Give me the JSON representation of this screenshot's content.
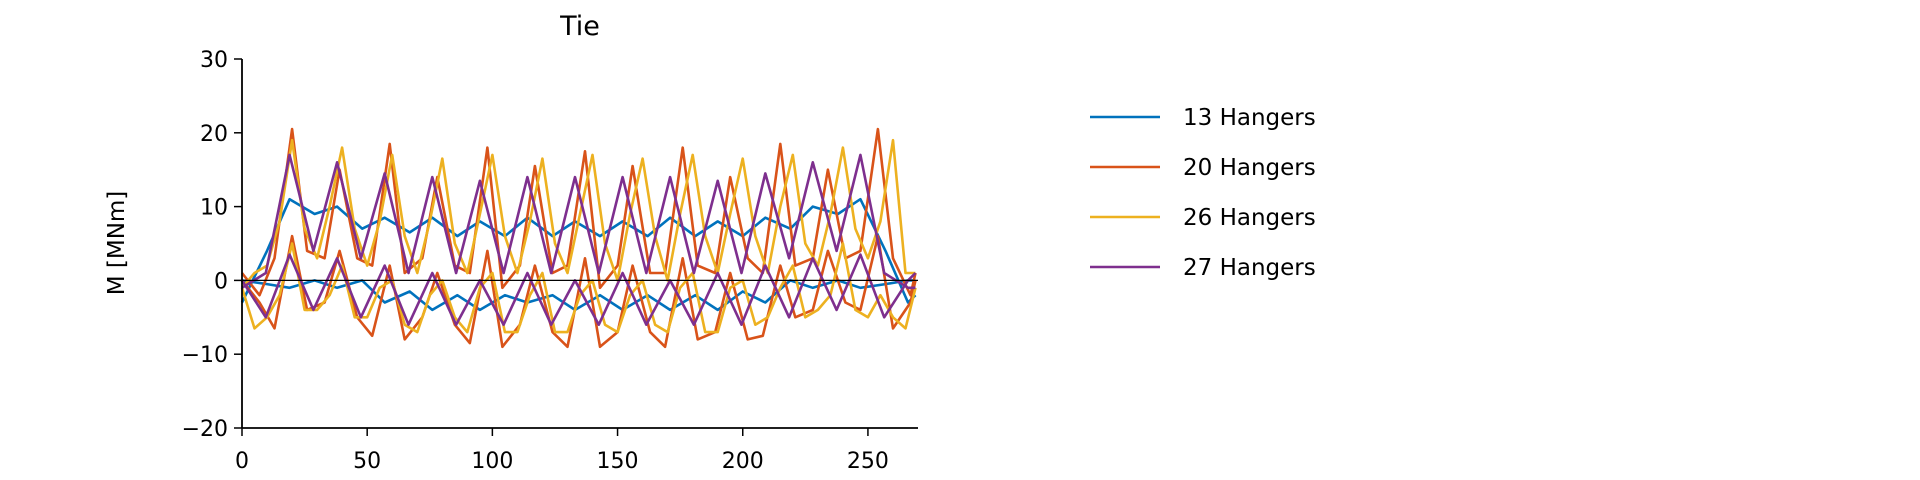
{
  "chart_data": {
    "type": "line",
    "title": "Tie",
    "xlabel": "",
    "ylabel": "M [MNm]",
    "xlim": [
      0,
      270
    ],
    "ylim": [
      -20,
      30
    ],
    "xticks": [
      0,
      50,
      100,
      150,
      200,
      250
    ],
    "yticks": [
      -20,
      -10,
      0,
      10,
      20,
      30
    ],
    "ytick_labels": [
      "−20",
      "−10",
      "0",
      "10",
      "20",
      "30"
    ],
    "zero_line": true,
    "grid": false,
    "legend_position": "right",
    "series": [
      {
        "name": "13 Hangers",
        "color": "#0072BD",
        "upper": {
          "x": [
            0,
            10,
            19,
            29,
            38,
            48,
            57,
            67,
            76,
            86,
            95,
            105,
            114,
            124,
            133,
            143,
            152,
            162,
            171,
            181,
            190,
            200,
            209,
            219,
            228,
            238,
            247,
            257,
            266,
            269
          ],
          "y": [
            -3,
            4,
            11,
            9,
            10,
            7,
            8.5,
            6.5,
            8.5,
            6,
            8,
            6,
            8.5,
            6,
            8,
            6,
            8,
            6,
            8.5,
            6,
            8,
            6,
            8.5,
            7,
            10,
            9,
            11,
            4,
            -3,
            -2
          ]
        },
        "lower": {
          "x": [
            0,
            10,
            19,
            29,
            38,
            48,
            57,
            67,
            76,
            86,
            95,
            105,
            114,
            124,
            133,
            143,
            152,
            162,
            171,
            181,
            190,
            200,
            209,
            219,
            228,
            238,
            247,
            257,
            266,
            269
          ],
          "y": [
            0,
            -0.5,
            -1,
            0,
            -1,
            0,
            -3,
            -1.5,
            -4,
            -2,
            -4,
            -2,
            -3,
            -2,
            -4,
            -2,
            -4,
            -2,
            -4,
            -2,
            -4,
            -1.5,
            -3,
            0,
            -1,
            0,
            -1,
            -0.5,
            0,
            0
          ]
        }
      },
      {
        "name": "20 Hangers",
        "color": "#D95319",
        "upper": {
          "x": [
            0,
            7,
            13,
            20,
            26,
            33,
            39,
            46,
            52,
            59,
            65,
            72,
            78,
            85,
            91,
            98,
            104,
            111,
            117,
            124,
            130,
            137,
            143,
            150,
            156,
            163,
            169,
            176,
            182,
            189,
            195,
            202,
            208,
            215,
            221,
            228,
            234,
            241,
            247,
            254,
            260,
            267,
            269
          ],
          "y": [
            1,
            -2,
            3,
            20.5,
            4,
            3,
            15,
            3,
            2,
            18.5,
            1,
            3,
            14,
            2,
            1,
            18,
            -1,
            2,
            15.5,
            1,
            2,
            17.5,
            -1,
            2,
            15.5,
            1,
            1,
            18,
            2,
            1,
            14,
            3,
            1,
            18.5,
            2,
            3,
            15,
            3,
            4,
            20.5,
            3,
            -2,
            1
          ]
        },
        "lower": {
          "x": [
            0,
            7,
            13,
            20,
            26,
            33,
            39,
            46,
            52,
            59,
            65,
            72,
            78,
            85,
            91,
            98,
            104,
            111,
            117,
            124,
            130,
            137,
            143,
            150,
            156,
            163,
            169,
            176,
            182,
            189,
            195,
            202,
            208,
            215,
            221,
            228,
            234,
            241,
            247,
            254,
            260,
            267,
            269
          ],
          "y": [
            0,
            -3,
            -6.5,
            6,
            -4,
            -3,
            4,
            -5,
            -7.5,
            2,
            -8,
            -5,
            1,
            -6,
            -8.5,
            4,
            -9,
            -6,
            2,
            -7,
            -9,
            3,
            -9,
            -7,
            2,
            -7,
            -9,
            3,
            -8,
            -7,
            1,
            -8,
            -7.5,
            2,
            -5,
            -4,
            4,
            -3,
            -4,
            6,
            -6.5,
            -3,
            0
          ]
        }
      },
      {
        "name": "26 Hangers",
        "color": "#EDB120",
        "upper": {
          "x": [
            0,
            5,
            10,
            15,
            20,
            25,
            30,
            35,
            40,
            45,
            50,
            55,
            60,
            65,
            70,
            75,
            80,
            85,
            90,
            95,
            100,
            105,
            110,
            115,
            120,
            125,
            130,
            135,
            140,
            145,
            150,
            155,
            160,
            165,
            170,
            175,
            180,
            185,
            190,
            195,
            200,
            205,
            210,
            215,
            220,
            225,
            230,
            235,
            240,
            245,
            250,
            255,
            260,
            265,
            269
          ],
          "y": [
            -1,
            1,
            2,
            8,
            19,
            7,
            3,
            10,
            18,
            7,
            2,
            8,
            17,
            6,
            1,
            8,
            16.5,
            5,
            1,
            9,
            17,
            6,
            1,
            8,
            16.5,
            5,
            1,
            9,
            17,
            5,
            0,
            9,
            16.5,
            6,
            0,
            9,
            17,
            6,
            1,
            9,
            16.5,
            6,
            1,
            10,
            17,
            5,
            2,
            9,
            18,
            7,
            3,
            8,
            19,
            1,
            1
          ]
        },
        "lower": {
          "x": [
            0,
            5,
            10,
            15,
            20,
            25,
            30,
            35,
            40,
            45,
            50,
            55,
            60,
            65,
            70,
            75,
            80,
            85,
            90,
            95,
            100,
            105,
            110,
            115,
            120,
            125,
            130,
            135,
            140,
            145,
            150,
            155,
            160,
            165,
            170,
            175,
            180,
            185,
            190,
            195,
            200,
            205,
            210,
            215,
            220,
            225,
            230,
            235,
            240,
            245,
            250,
            255,
            260,
            265,
            269
          ],
          "y": [
            -1,
            -6.5,
            -5,
            -2,
            5,
            -4,
            -4,
            -2,
            2,
            -5,
            -5,
            -1,
            0,
            -6,
            -7,
            -2,
            0,
            -5,
            -7,
            -1,
            1,
            -7,
            -7,
            -2,
            1,
            -7,
            -7,
            -2,
            0,
            -6,
            -7,
            -2,
            0,
            -6,
            -7,
            -1,
            1,
            -7,
            -7,
            -1,
            0,
            -6,
            -5,
            -1,
            2,
            -5,
            -4,
            -2,
            5,
            -4,
            -5,
            -2,
            -5,
            -6.5,
            -1
          ]
        }
      },
      {
        "name": "27 Hangers",
        "color": "#7E2F8E",
        "upper": {
          "x": [
            0,
            9.5,
            19,
            28.5,
            38,
            47.5,
            57,
            66.5,
            76,
            85.5,
            95,
            104.5,
            114,
            123.5,
            133,
            142.5,
            152,
            161.5,
            171,
            180.5,
            190,
            199.5,
            209,
            218.5,
            228,
            237.5,
            247,
            256.5,
            266,
            269
          ],
          "y": [
            -1,
            1,
            17,
            4,
            16,
            3,
            14.5,
            1,
            14,
            1,
            13.5,
            1,
            14,
            1,
            14,
            1,
            14,
            1,
            14,
            1,
            13.5,
            1,
            14.5,
            3,
            16,
            4,
            17,
            1,
            -1,
            -1
          ]
        },
        "lower": {
          "x": [
            0,
            9.5,
            19,
            28.5,
            38,
            47.5,
            57,
            66.5,
            76,
            85.5,
            95,
            104.5,
            114,
            123.5,
            133,
            142.5,
            152,
            161.5,
            171,
            180.5,
            190,
            199.5,
            209,
            218.5,
            228,
            237.5,
            247,
            256.5,
            266,
            269
          ],
          "y": [
            0,
            -5,
            3.5,
            -4,
            3,
            -5,
            2,
            -6,
            1,
            -6,
            0,
            -6,
            1,
            -6,
            0,
            -6,
            1,
            -6,
            0,
            -6,
            1,
            -6,
            2,
            -5,
            3,
            -4,
            3.5,
            -5,
            0,
            1
          ]
        }
      }
    ]
  }
}
